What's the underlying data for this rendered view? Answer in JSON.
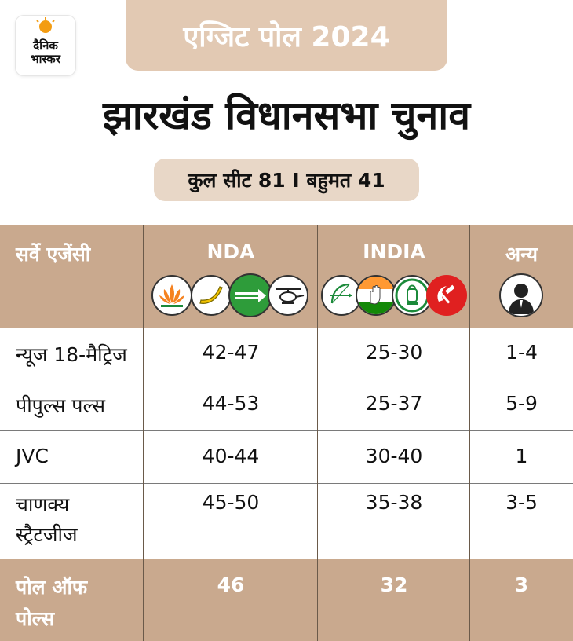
{
  "brand": {
    "line1": "दैनिक",
    "line2": "भास्कर"
  },
  "header": {
    "top_label": "एग्जिट पोल 2024",
    "title": "झारखंड विधानसभा चुनाव",
    "subtitle": "कुल सीट 81 I बहुमत 41"
  },
  "table": {
    "columns": [
      "सर्वे एजेंसी",
      "NDA",
      "INDIA",
      "अन्य"
    ],
    "rows": [
      {
        "agency": "न्यूज 18-मैट्रिज",
        "nda": "42-47",
        "india": "25-30",
        "others": "1-4"
      },
      {
        "agency": "पीपुल्स पल्स",
        "nda": "44-53",
        "india": "25-37",
        "others": "5-9"
      },
      {
        "agency": "JVC",
        "nda": "40-44",
        "india": "30-40",
        "others": "1"
      },
      {
        "agency_line1": "चाणक्य",
        "agency_line2": "स्ट्रैटजीज",
        "nda": "45-50",
        "india": "35-38",
        "others": "3-5"
      }
    ],
    "footer": {
      "label_line1": "पोल ऑफ",
      "label_line2": "पोल्स",
      "nda": "46",
      "india": "32",
      "others": "3"
    }
  },
  "icons": {
    "nda": [
      "lotus-icon",
      "banana-icon",
      "arrow-icon",
      "helicopter-icon"
    ],
    "india": [
      "bow-arrow-icon",
      "hand-icon",
      "lantern-icon",
      "hammer-sickle-icon"
    ],
    "others": [
      "person-silhouette-icon"
    ]
  },
  "colors": {
    "header_bg": "#c9a98e",
    "pill_bg": "#e2c9b3",
    "brand_orange": "#f39c12",
    "jmm_green": "#2e9c3a",
    "cpi_red": "#e02020"
  }
}
